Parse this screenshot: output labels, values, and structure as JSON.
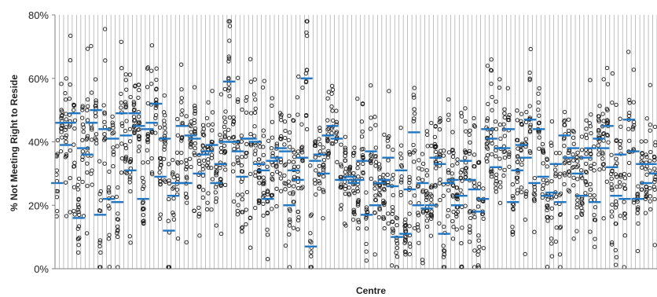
{
  "chart_data": {
    "type": "scatter",
    "xlabel": "Centre",
    "ylabel": "% Not Meeting Right to Reside",
    "ylim": [
      0,
      80
    ],
    "yticks": [
      0,
      20,
      40,
      60,
      80
    ],
    "ytick_labels": [
      "0%",
      "20%",
      "40%",
      "60%",
      "80%"
    ],
    "grid": "vertical separators between centres",
    "legend": "none",
    "colors": {
      "points": "#1a1a1a",
      "mean": "#1f77c4",
      "separator": "#a6a6a6",
      "axis": "#7f7f7f"
    },
    "series": [
      {
        "name": "",
        "x": [
          1,
          2,
          3,
          4,
          5,
          6,
          7,
          8,
          9,
          10,
          11,
          12,
          13,
          14,
          15,
          16,
          17,
          18,
          19,
          20,
          21,
          22,
          23,
          24,
          25,
          26,
          27,
          28,
          29,
          30,
          31,
          32,
          33,
          34,
          35,
          36,
          37,
          38,
          39,
          40,
          41,
          42,
          43,
          44,
          45,
          46,
          47,
          48,
          49,
          50,
          51,
          52,
          53,
          54,
          55,
          56,
          57,
          58,
          59,
          60,
          61,
          62,
          63,
          64,
          65,
          66,
          67,
          68,
          69,
          70,
          71,
          72,
          73,
          74,
          75,
          76,
          77,
          78,
          79,
          80,
          81,
          82,
          83,
          84,
          85,
          86,
          87,
          88,
          89,
          90,
          91,
          92,
          93,
          94,
          95,
          96,
          97,
          98,
          99,
          100,
          101,
          102,
          103,
          104,
          105,
          106,
          107,
          108,
          109,
          110,
          111,
          112,
          113,
          114,
          115,
          116,
          117,
          118,
          119,
          120,
          121,
          122,
          123,
          124,
          125,
          126,
          127,
          128,
          129,
          130,
          131,
          132,
          133,
          134,
          135,
          136,
          137,
          138,
          139,
          140
        ],
        "mean": [
          27,
          46,
          39,
          46,
          49,
          16,
          38,
          36,
          46,
          50,
          17,
          44,
          22,
          41,
          21,
          49,
          42,
          31,
          49,
          45,
          22,
          44,
          46,
          52,
          29,
          41,
          12,
          23,
          27,
          45,
          27,
          42,
          41,
          30,
          36,
          37,
          39,
          27,
          33,
          40,
          59,
          40,
          37,
          29,
          41,
          41,
          40,
          33,
          31,
          22,
          34,
          35,
          38,
          37,
          20,
          31,
          28,
          35,
          60,
          7,
          34,
          36,
          30,
          42,
          45,
          41,
          28,
          28,
          29,
          27,
          28,
          34,
          17,
          37,
          20,
          27,
          28,
          35,
          26,
          10,
          31,
          11,
          25,
          43,
          20,
          27,
          19,
          20,
          35,
          33,
          11,
          27,
          28,
          20,
          23,
          34,
          28,
          25,
          18,
          22,
          44,
          41,
          32,
          38,
          38,
          44,
          21,
          31,
          39,
          35,
          47,
          27,
          44,
          29,
          23,
          24,
          33,
          21,
          42,
          35,
          38,
          30,
          23,
          35,
          38,
          21,
          41,
          38,
          45,
          32,
          23,
          36,
          22,
          47,
          37,
          22,
          33,
          27,
          33,
          30
        ]
      }
    ]
  }
}
